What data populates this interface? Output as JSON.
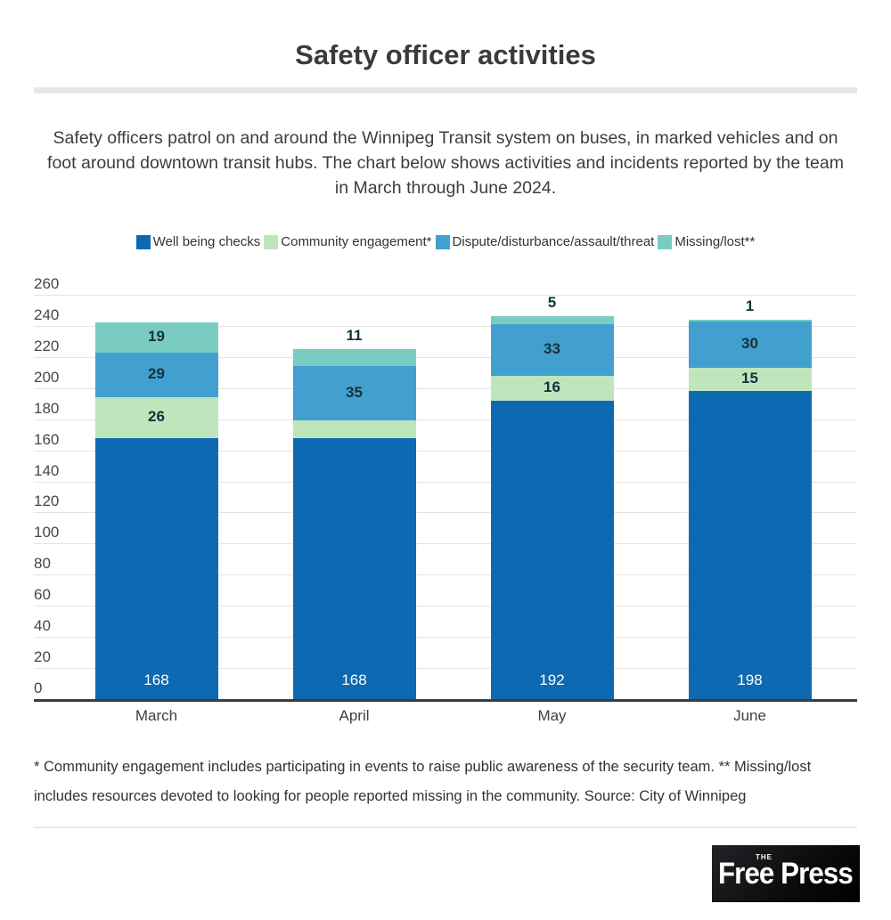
{
  "header": {
    "title": "Safety officer activities",
    "subtitle": "Safety officers patrol on and around the Winnipeg Transit system on buses, in marked vehicles and on foot around downtown transit hubs. The chart below shows activities and incidents reported by the team in March through June 2024."
  },
  "chart_data": {
    "type": "bar",
    "stacked": true,
    "title": "Safety officer activities",
    "categories": [
      "March",
      "April",
      "May",
      "June"
    ],
    "series": [
      {
        "name": "Well being checks",
        "color": "#0d69b2",
        "values": [
          168,
          168,
          192,
          198
        ]
      },
      {
        "name": "Community engagement*",
        "color": "#bfe5bd",
        "values": [
          26,
          11,
          16,
          15
        ]
      },
      {
        "name": "Dispute/disturbance/assault/threat",
        "color": "#41a0cf",
        "values": [
          29,
          35,
          33,
          30
        ]
      },
      {
        "name": "Missing/lost**",
        "color": "#7accc3",
        "values": [
          19,
          11,
          5,
          1
        ]
      }
    ],
    "totals": [
      242,
      225,
      246,
      244
    ],
    "xlabel": "",
    "ylabel": "",
    "ylim": [
      0,
      260
    ],
    "ytick_step": 20,
    "grid": true,
    "legend_position": "top",
    "colors": {
      "gridline": "#e4e4e4",
      "axis": "#3c3c3c",
      "inside_label": "#16313a",
      "base_label": "#ffffff",
      "outside_label": "#0d3a31"
    }
  },
  "footnote": "* Community engagement includes participating in events to raise public awareness of the security team. ** Missing/lost includes resources devoted to looking for people reported missing in the community. Source: City of Winnipeg",
  "logo": {
    "prefix": "THE",
    "name": "Free Press"
  }
}
